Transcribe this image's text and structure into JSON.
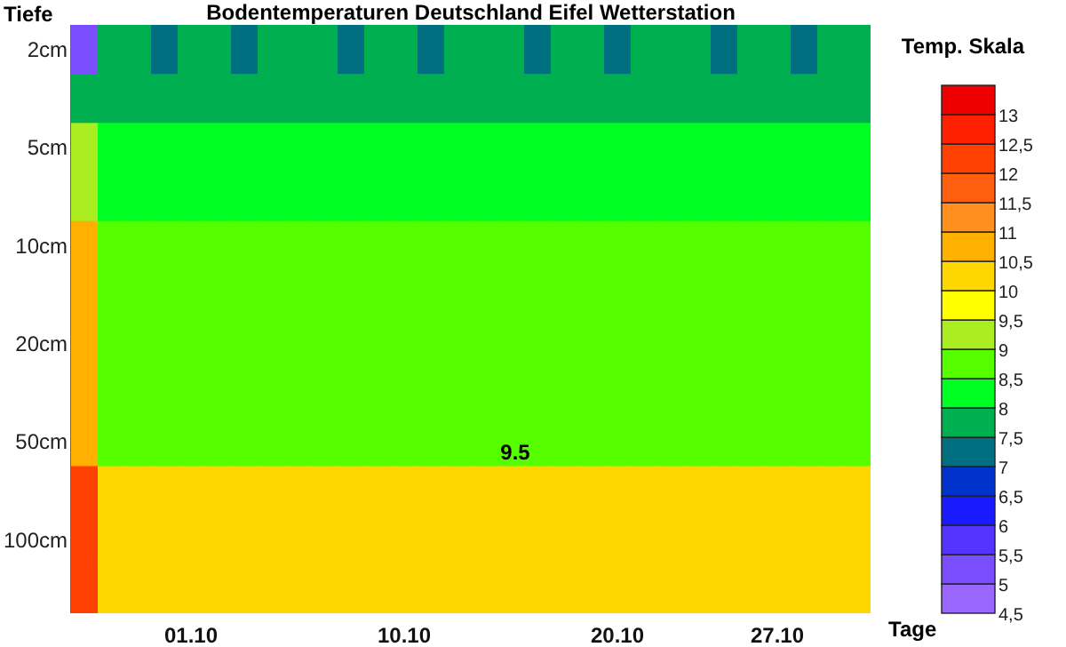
{
  "chart_data": {
    "type": "heatmap",
    "title": "Bodentemperaturen Deutschland Eifel Wetterstation",
    "xlabel": "Tage",
    "ylabel": "Tiefe",
    "clabel": "Temp. Skala",
    "categories": [
      null,
      null,
      null,
      null,
      "01.10",
      null,
      null,
      null,
      null,
      null,
      null,
      null,
      "10.10",
      null,
      null,
      null,
      null,
      null,
      null,
      null,
      "20.10",
      null,
      null,
      null,
      null,
      null,
      "27.10",
      null,
      null,
      null
    ],
    "y_categories": [
      "2cm",
      null,
      "5cm",
      null,
      "10cm",
      null,
      "20cm",
      null,
      "50cm",
      null,
      "100cm",
      null
    ],
    "cells": [
      [
        5.2,
        7.7,
        7.7,
        7.3,
        7.7,
        7.7,
        7.3,
        7.7,
        7.7,
        7.7,
        7.3,
        7.7,
        7.7,
        7.3,
        7.7,
        7.7,
        7.7,
        7.3,
        7.7,
        7.7,
        7.3,
        7.7,
        7.7,
        7.7,
        7.3,
        7.7,
        7.7,
        7.3,
        7.7,
        7.7
      ],
      [
        7.7,
        7.7,
        7.7,
        7.7,
        7.7,
        7.7,
        7.7,
        7.7,
        7.7,
        7.7,
        7.7,
        7.7,
        7.7,
        7.7,
        7.7,
        7.7,
        7.7,
        7.7,
        7.7,
        7.7,
        7.7,
        7.7,
        7.7,
        7.7,
        7.7,
        7.7,
        7.7,
        7.7,
        7.7,
        7.7
      ],
      [
        9.2,
        8.2,
        8.2,
        8.2,
        8.2,
        8.2,
        8.2,
        8.2,
        8.2,
        8.2,
        8.2,
        8.2,
        8.2,
        8.2,
        8.2,
        8.2,
        8.2,
        8.2,
        8.2,
        8.2,
        8.2,
        8.2,
        8.2,
        8.2,
        8.2,
        8.2,
        8.2,
        8.2,
        8.2,
        8.2
      ],
      [
        9.2,
        8.2,
        8.2,
        8.2,
        8.2,
        8.2,
        8.2,
        8.2,
        8.2,
        8.2,
        8.2,
        8.2,
        8.2,
        8.2,
        8.2,
        8.2,
        8.2,
        8.2,
        8.2,
        8.2,
        8.2,
        8.2,
        8.2,
        8.2,
        8.2,
        8.2,
        8.2,
        8.2,
        8.2,
        8.2
      ],
      [
        10.7,
        8.7,
        8.7,
        8.7,
        8.7,
        8.7,
        8.7,
        8.7,
        8.7,
        8.7,
        8.7,
        8.7,
        8.7,
        8.7,
        8.7,
        8.7,
        8.7,
        8.7,
        8.7,
        8.7,
        8.7,
        8.7,
        8.7,
        8.7,
        8.7,
        8.7,
        8.7,
        8.7,
        8.7,
        8.7
      ],
      [
        10.7,
        8.7,
        8.7,
        8.7,
        8.7,
        8.7,
        8.7,
        8.7,
        8.7,
        8.7,
        8.7,
        8.7,
        8.7,
        8.7,
        8.7,
        8.7,
        8.7,
        8.7,
        8.7,
        8.7,
        8.7,
        8.7,
        8.7,
        8.7,
        8.7,
        8.7,
        8.7,
        8.7,
        8.7,
        8.7
      ],
      [
        10.7,
        8.7,
        8.7,
        8.7,
        8.7,
        8.7,
        8.7,
        8.7,
        8.7,
        8.7,
        8.7,
        8.7,
        8.7,
        8.7,
        8.7,
        8.7,
        8.7,
        8.7,
        8.7,
        8.7,
        8.7,
        8.7,
        8.7,
        8.7,
        8.7,
        8.7,
        8.7,
        8.7,
        8.7,
        8.7
      ],
      [
        10.7,
        8.7,
        8.7,
        8.7,
        8.7,
        8.7,
        8.7,
        8.7,
        8.7,
        8.7,
        8.7,
        8.7,
        8.7,
        8.7,
        8.7,
        8.7,
        8.7,
        8.7,
        8.7,
        8.7,
        8.7,
        8.7,
        8.7,
        8.7,
        8.7,
        8.7,
        8.7,
        8.7,
        8.7,
        8.7
      ],
      [
        10.7,
        8.7,
        8.7,
        8.7,
        8.7,
        8.7,
        8.7,
        8.7,
        8.7,
        8.7,
        8.7,
        8.7,
        8.7,
        8.7,
        8.7,
        8.7,
        8.7,
        8.7,
        8.7,
        8.7,
        8.7,
        8.7,
        8.7,
        8.7,
        8.7,
        8.7,
        8.7,
        8.7,
        8.7,
        8.7
      ],
      [
        12.2,
        10.2,
        10.2,
        10.2,
        10.2,
        10.2,
        10.2,
        10.2,
        10.2,
        10.2,
        10.2,
        10.2,
        10.2,
        10.2,
        10.2,
        10.2,
        10.2,
        10.2,
        10.2,
        10.2,
        10.2,
        10.2,
        10.2,
        10.2,
        10.2,
        10.2,
        10.2,
        10.2,
        10.2,
        10.2
      ],
      [
        12.2,
        10.2,
        10.2,
        10.2,
        10.2,
        10.2,
        10.2,
        10.2,
        10.2,
        10.2,
        10.2,
        10.2,
        10.2,
        10.2,
        10.2,
        10.2,
        10.2,
        10.2,
        10.2,
        10.2,
        10.2,
        10.2,
        10.2,
        10.2,
        10.2,
        10.2,
        10.2,
        10.2,
        10.2,
        10.2
      ],
      [
        12.2,
        10.2,
        10.2,
        10.2,
        10.2,
        10.2,
        10.2,
        10.2,
        10.2,
        10.2,
        10.2,
        10.2,
        10.2,
        10.2,
        10.2,
        10.2,
        10.2,
        10.2,
        10.2,
        10.2,
        10.2,
        10.2,
        10.2,
        10.2,
        10.2,
        10.2,
        10.2,
        10.2,
        10.2,
        10.2
      ]
    ],
    "clim": [
      4.5,
      13.5
    ],
    "cticks": [
      {
        "value": 4.5,
        "label": "4,5"
      },
      5,
      {
        "value": 5.5,
        "label": "5,5"
      },
      6,
      {
        "value": 6.5,
        "label": "6,5"
      },
      7,
      {
        "value": 7.5,
        "label": "7,5"
      },
      8,
      {
        "value": 8.5,
        "label": "8,5"
      },
      9,
      {
        "value": 9.5,
        "label": "9,5"
      },
      10,
      {
        "value": 10.5,
        "label": "10,5"
      },
      11,
      {
        "value": 11.5,
        "label": "11,5"
      },
      12,
      {
        "value": 12.5,
        "label": "12,5"
      },
      13
    ],
    "annotations": [
      "9.5"
    ]
  }
}
